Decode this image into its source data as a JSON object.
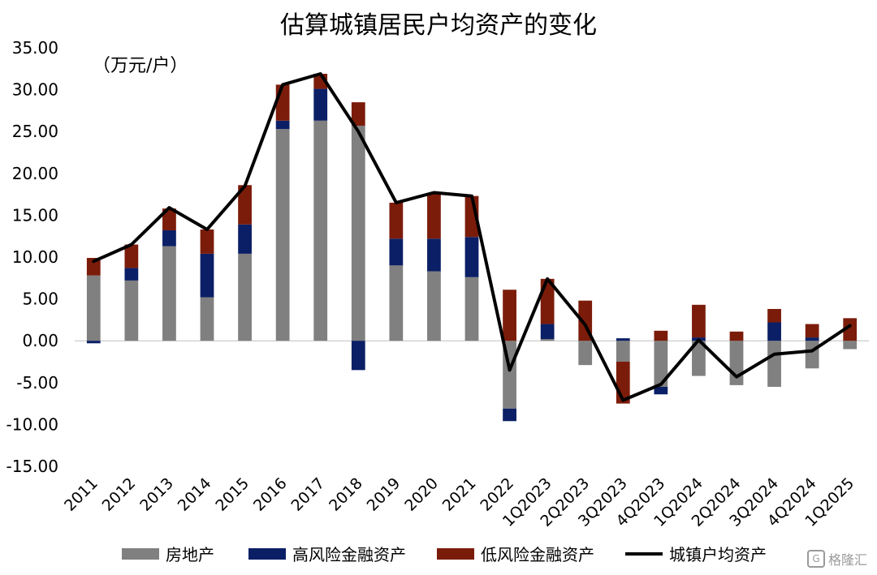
{
  "chart_data": {
    "type": "bar",
    "title": "估算城镇居民户均资产的变化",
    "unit": "（万元/户）",
    "categories": [
      "2011",
      "2012",
      "2013",
      "2014",
      "2015",
      "2016",
      "2017",
      "2018",
      "2019",
      "2020",
      "2021",
      "2022",
      "1Q2023",
      "2Q2023",
      "3Q2023",
      "4Q2023",
      "1Q2024",
      "2Q2024",
      "3Q2024",
      "4Q2024",
      "1Q2025"
    ],
    "ylim": [
      -15,
      35
    ],
    "yticks": [
      "35.00",
      "30.00",
      "25.00",
      "20.00",
      "15.00",
      "10.00",
      "5.00",
      "0.00",
      "-5.00",
      "-10.00",
      "-15.00"
    ],
    "series": [
      {
        "name": "房地产",
        "kind": "bar",
        "color": "#808080",
        "values": [
          7.8,
          7.2,
          11.3,
          5.2,
          10.4,
          25.3,
          26.3,
          25.7,
          9.0,
          8.3,
          7.6,
          -8.1,
          0.2,
          -2.9,
          -2.5,
          -5.5,
          -4.2,
          -5.3,
          -5.5,
          -3.3,
          -1.0
        ]
      },
      {
        "name": "高风险金融资产",
        "kind": "bar",
        "color": "#0b1f66",
        "values": [
          -0.3,
          1.5,
          1.9,
          5.2,
          3.5,
          1.0,
          3.8,
          -3.5,
          3.2,
          3.9,
          4.8,
          -1.5,
          1.8,
          0.0,
          0.3,
          -0.9,
          0.4,
          0.0,
          2.2,
          0.4,
          0.0
        ]
      },
      {
        "name": "低风险金融资产",
        "kind": "bar",
        "color": "#7b1c0a",
        "values": [
          2.1,
          2.8,
          2.6,
          2.9,
          4.7,
          4.3,
          1.8,
          2.8,
          4.3,
          5.5,
          4.9,
          6.1,
          5.4,
          4.8,
          -5.0,
          1.2,
          3.9,
          1.1,
          1.6,
          1.6,
          2.7
        ]
      },
      {
        "name": "城镇户均资产",
        "kind": "line",
        "color": "#000000",
        "values": [
          9.5,
          11.5,
          15.9,
          13.3,
          18.5,
          30.6,
          31.9,
          25.0,
          16.5,
          17.7,
          17.3,
          -3.5,
          7.4,
          1.9,
          -7.1,
          -5.2,
          0.1,
          -4.3,
          -1.6,
          -1.2,
          1.8
        ]
      }
    ]
  },
  "watermark": {
    "icon": "G",
    "text": "格隆汇"
  }
}
